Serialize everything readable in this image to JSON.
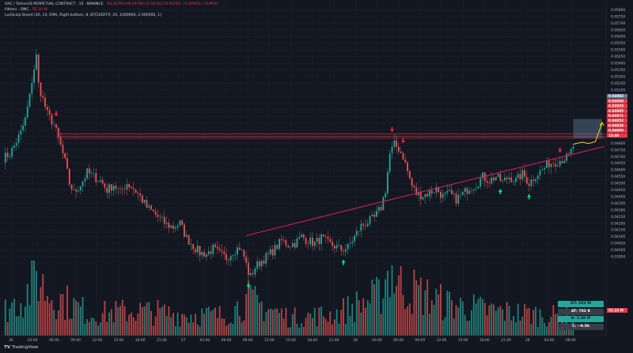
{
  "legend": {
    "symbol_line": "OAC / TetherUS PERPETUAL CONTRACT · 15 · BINANCE",
    "ohlc": "O0.04793  H0.04794  L0.04781  C0.04783  −0.00003 (−0.06%)",
    "ind1_name": "Others · OMC",
    "ind1_value": "55.10 M",
    "ind2_name": "LuxScalp Board (30, 14, EMA, Right bottom, 8, BTCUSDT.P, 20, 1000000, 2.000000, 1)"
  },
  "branding": {
    "logo_text": "TradingView"
  },
  "colors": {
    "background": "#131722",
    "up": "#26a69a",
    "down": "#ef5350",
    "trendline": "#e91e63",
    "resistance": "#f23645",
    "arrow_up": "#00e676",
    "arrow_down": "#ff1744",
    "projection": "#ffd600",
    "target_box": "#5d7a96"
  },
  "price_axis": {
    "ticks": [
      "0.05800",
      "0.05750",
      "0.05700",
      "0.05650",
      "0.05600",
      "0.05550",
      "0.05500",
      "0.05450",
      "0.05400",
      "0.05350",
      "0.05300",
      "0.05250",
      "0.05200",
      "0.05150",
      "0.05100",
      "0.05050",
      "0.05000",
      "0.04950",
      "0.04900",
      "0.04850",
      "0.04800",
      "0.04750",
      "0.04700",
      "0.04650",
      "0.04600",
      "0.04550",
      "0.04500",
      "0.04450",
      "0.04400",
      "0.04350",
      "0.04300",
      "0.04250",
      "0.04200",
      "0.04150",
      "0.04100",
      "0.04050",
      "0.04000",
      "0.03950"
    ],
    "badges": [
      {
        "text": "0.04983",
        "color": "#5d7a96",
        "value": 0.04983
      },
      {
        "text": "0.04950",
        "color": "#f23645",
        "value": 0.0495
      },
      {
        "text": "0.04929",
        "color": "#f23645",
        "value": 0.04929
      },
      {
        "text": "0.04895",
        "color": "#f23645",
        "value": 0.04895
      },
      {
        "text": "0.04871",
        "color": "#f23645",
        "value": 0.04871
      },
      {
        "text": "0.04852",
        "color": "#f23645",
        "value": 0.04852
      },
      {
        "text": "0.04838",
        "color": "#f23645",
        "value": 0.04838
      },
      {
        "text": "0.04800",
        "color": "#f23645",
        "value": 0.048
      },
      {
        "text": "15:48",
        "color": "#f23645",
        "value": 0.04782
      }
    ]
  },
  "time_axis": {
    "labels": [
      "26",
      "03:00",
      "06:00",
      "09:00",
      "12:00",
      "15:00",
      "18:00",
      "21:00",
      "27",
      "03:00",
      "06:00",
      "09:00",
      "12:00",
      "15:00",
      "18:00",
      "21:00",
      "28",
      "03:00",
      "06:00",
      "09:00",
      "12:00",
      "15:00",
      "18:00",
      "21:00",
      "29",
      "03:00",
      "06:00"
    ]
  },
  "volume_panel": {
    "badges": [
      {
        "text": "DT: 503 M",
        "bg": "#26a69a",
        "fg": "#131722"
      },
      {
        "text": "AT: 782 K",
        "bg": "#3a3e4a",
        "fg": "#ffffff"
      },
      {
        "text": "B: 5.48 M",
        "bg": "#26a69a",
        "fg": "#131722"
      },
      {
        "text": "C: −9.56",
        "bg": "#3a3e4a",
        "fg": "#ffffff"
      }
    ],
    "axis_badge": "55.10 M"
  },
  "chart_data": {
    "type": "candlestick",
    "timeframe": "15",
    "ylim": [
      0.0395,
      0.0585
    ],
    "x_index_range": [
      0,
      270
    ],
    "trendlines": [
      {
        "name": "support",
        "x": [
          110,
          272
        ],
        "y": [
          0.04108,
          0.04776
        ]
      }
    ],
    "resistance_levels": [
      0.04871,
      0.04852,
      0.04838
    ],
    "signal_up_arrows_x": [
      111,
      154,
      225,
      238
    ],
    "signal_down_arrows_x": [
      24,
      176,
      181,
      252
    ],
    "target_zone": {
      "x": [
        258,
        271
      ],
      "y": [
        0.04838,
        0.04983
      ]
    },
    "projection_path": [
      [
        258,
        0.04793
      ],
      [
        262,
        0.04808
      ],
      [
        265,
        0.04798
      ],
      [
        268,
        0.04812
      ],
      [
        271,
        0.0495
      ]
    ],
    "series": [
      {
        "name": "close",
        "anchors": [
          [
            0,
            0.0469
          ],
          [
            3,
            0.0472
          ],
          [
            5,
            0.0478
          ],
          [
            8,
            0.0488
          ],
          [
            10,
            0.0498
          ],
          [
            12,
            0.0515
          ],
          [
            13,
            0.0527
          ],
          [
            15,
            0.0545
          ],
          [
            16,
            0.0524
          ],
          [
            18,
            0.0513
          ],
          [
            20,
            0.0502
          ],
          [
            23,
            0.0494
          ],
          [
            26,
            0.0478
          ],
          [
            28,
            0.0466
          ],
          [
            30,
            0.045
          ],
          [
            32,
            0.0443
          ],
          [
            35,
            0.0449
          ],
          [
            38,
            0.0458
          ],
          [
            41,
            0.0455
          ],
          [
            44,
            0.0452
          ],
          [
            47,
            0.0445
          ],
          [
            50,
            0.0449
          ],
          [
            53,
            0.0443
          ],
          [
            56,
            0.045
          ],
          [
            59,
            0.0446
          ],
          [
            62,
            0.044
          ],
          [
            65,
            0.0432
          ],
          [
            68,
            0.0428
          ],
          [
            71,
            0.0423
          ],
          [
            74,
            0.0419
          ],
          [
            77,
            0.0417
          ],
          [
            80,
            0.042
          ],
          [
            83,
            0.0409
          ],
          [
            86,
            0.0403
          ],
          [
            89,
            0.0398
          ],
          [
            92,
            0.0397
          ],
          [
            95,
            0.0401
          ],
          [
            98,
            0.0397
          ],
          [
            101,
            0.0394
          ],
          [
            104,
            0.0399
          ],
          [
            107,
            0.0402
          ],
          [
            109,
            0.0395
          ],
          [
            111,
            0.0383
          ],
          [
            112,
            0.038
          ],
          [
            114,
            0.0387
          ],
          [
            117,
            0.0392
          ],
          [
            120,
            0.0396
          ],
          [
            123,
            0.0401
          ],
          [
            126,
            0.0407
          ],
          [
            129,
            0.0404
          ],
          [
            132,
            0.0405
          ],
          [
            135,
            0.041
          ],
          [
            138,
            0.0407
          ],
          [
            141,
            0.0405
          ],
          [
            144,
            0.0409
          ],
          [
            147,
            0.0405
          ],
          [
            150,
            0.0403
          ],
          [
            153,
            0.04
          ],
          [
            156,
            0.0402
          ],
          [
            159,
            0.041
          ],
          [
            162,
            0.0418
          ],
          [
            165,
            0.0421
          ],
          [
            168,
            0.0424
          ],
          [
            171,
            0.0432
          ],
          [
            173,
            0.0445
          ],
          [
            175,
            0.0472
          ],
          [
            177,
            0.0479
          ],
          [
            179,
            0.0476
          ],
          [
            181,
            0.047
          ],
          [
            183,
            0.0459
          ],
          [
            185,
            0.0448
          ],
          [
            187,
            0.0442
          ],
          [
            190,
            0.0441
          ],
          [
            193,
            0.0443
          ],
          [
            196,
            0.0446
          ],
          [
            199,
            0.044
          ],
          [
            202,
            0.0442
          ],
          [
            205,
            0.0438
          ],
          [
            208,
            0.0442
          ],
          [
            211,
            0.0447
          ],
          [
            214,
            0.0449
          ],
          [
            217,
            0.0455
          ],
          [
            220,
            0.0452
          ],
          [
            223,
            0.0455
          ],
          [
            226,
            0.0451
          ],
          [
            229,
            0.0455
          ],
          [
            232,
            0.0452
          ],
          [
            235,
            0.0457
          ],
          [
            238,
            0.045
          ],
          [
            241,
            0.0456
          ],
          [
            244,
            0.046
          ],
          [
            247,
            0.0465
          ],
          [
            250,
            0.0466
          ],
          [
            253,
            0.0468
          ],
          [
            256,
            0.047
          ],
          [
            258,
            0.0478
          ]
        ]
      }
    ],
    "volume_anchors": [
      [
        0,
        0.35
      ],
      [
        10,
        0.55
      ],
      [
        15,
        0.85
      ],
      [
        20,
        0.6
      ],
      [
        30,
        0.45
      ],
      [
        40,
        0.3
      ],
      [
        60,
        0.35
      ],
      [
        80,
        0.3
      ],
      [
        100,
        0.28
      ],
      [
        111,
        0.5
      ],
      [
        130,
        0.25
      ],
      [
        150,
        0.3
      ],
      [
        170,
        0.55
      ],
      [
        175,
        0.95
      ],
      [
        180,
        0.7
      ],
      [
        200,
        0.45
      ],
      [
        220,
        0.35
      ],
      [
        240,
        0.3
      ],
      [
        258,
        0.25
      ]
    ]
  }
}
